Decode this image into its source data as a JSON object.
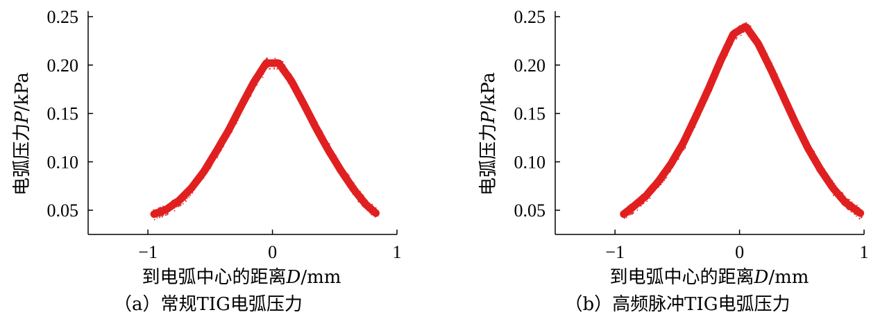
{
  "colors": {
    "curve": "#e02020",
    "axis": "#000000"
  },
  "chart_data": [
    {
      "type": "scatter",
      "panel_label": "（a）常规TIG电弧压力",
      "xlabel": {
        "prefix": "到电弧中心的距离",
        "symbol": "D",
        "unit": "/mm"
      },
      "ylabel": {
        "prefix": "电弧压力",
        "symbol": "P",
        "unit": "/kPa"
      },
      "xlim": [
        -1.48,
        1.0
      ],
      "ylim": [
        0.025,
        0.25
      ],
      "xticks": [
        -1,
        0,
        1
      ],
      "xtick_labels": [
        "−1",
        "0",
        "1"
      ],
      "yticks": [
        0.05,
        0.1,
        0.15,
        0.2,
        0.25
      ],
      "ytick_labels": [
        "0.05",
        "0.10",
        "0.15",
        "0.20",
        "0.25"
      ],
      "grid": false,
      "series": [
        {
          "x": [
            -0.95,
            -0.85,
            -0.75,
            -0.65,
            -0.55,
            -0.45,
            -0.35,
            -0.25,
            -0.15,
            -0.05,
            0.05,
            0.15,
            0.25,
            0.35,
            0.45,
            0.55,
            0.65,
            0.75,
            0.83
          ],
          "y": [
            0.046,
            0.051,
            0.06,
            0.073,
            0.09,
            0.111,
            0.133,
            0.158,
            0.182,
            0.202,
            0.202,
            0.184,
            0.16,
            0.135,
            0.112,
            0.091,
            0.072,
            0.056,
            0.047
          ]
        }
      ]
    },
    {
      "type": "scatter",
      "panel_label": "（b）高频脉冲TIG电弧压力",
      "xlabel": {
        "prefix": "到电弧中心的距离",
        "symbol": "D",
        "unit": "/mm"
      },
      "ylabel": {
        "prefix": "电弧压力",
        "symbol": "P",
        "unit": "/kPa"
      },
      "xlim": [
        -1.48,
        1.0
      ],
      "ylim": [
        0.025,
        0.25
      ],
      "xticks": [
        -1,
        0,
        1
      ],
      "xtick_labels": [
        "−1",
        "0",
        "1"
      ],
      "yticks": [
        0.05,
        0.1,
        0.15,
        0.2,
        0.25
      ],
      "ytick_labels": [
        "0.05",
        "0.10",
        "0.15",
        "0.20",
        "0.25"
      ],
      "grid": false,
      "series": [
        {
          "x": [
            -0.93,
            -0.85,
            -0.75,
            -0.65,
            -0.55,
            -0.45,
            -0.35,
            -0.25,
            -0.15,
            -0.05,
            0.05,
            0.15,
            0.25,
            0.35,
            0.45,
            0.55,
            0.65,
            0.75,
            0.85,
            0.97
          ],
          "y": [
            0.046,
            0.054,
            0.065,
            0.08,
            0.098,
            0.12,
            0.147,
            0.175,
            0.205,
            0.232,
            0.24,
            0.222,
            0.196,
            0.168,
            0.14,
            0.114,
            0.092,
            0.073,
            0.058,
            0.047
          ]
        }
      ]
    }
  ]
}
